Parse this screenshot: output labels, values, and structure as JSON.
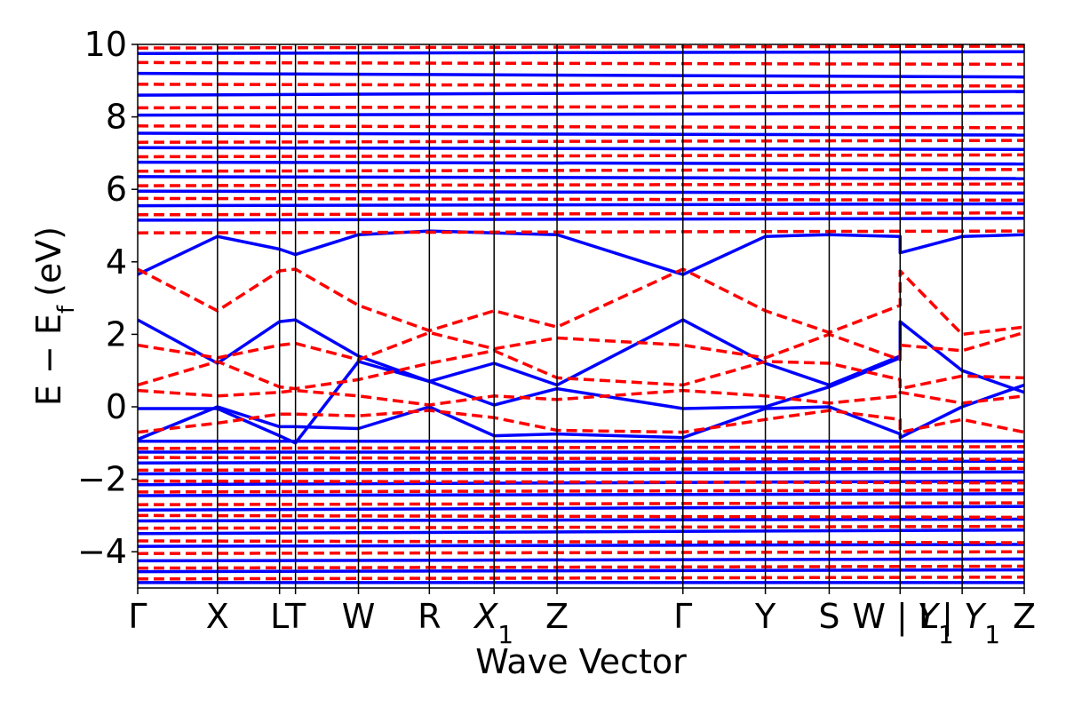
{
  "chart_data": {
    "type": "line",
    "title": "",
    "xlabel": "Wave Vector",
    "ylabel": "E − E_f (eV)",
    "ylabel_parts": {
      "main": "E − E",
      "sub": "f",
      "unit": "(eV)"
    },
    "ylim": [
      -5,
      10
    ],
    "yticks": [
      -4,
      -2,
      0,
      2,
      4,
      6,
      8,
      10
    ],
    "ytick_labels": [
      "−4",
      "−2",
      "0",
      "2",
      "4",
      "6",
      "8",
      "10"
    ],
    "grid": false,
    "legend": "none",
    "kpath": [
      {
        "label": "Γ",
        "sub": "",
        "k": 0.0
      },
      {
        "label": "X",
        "sub": "",
        "k": 0.9
      },
      {
        "label": "L",
        "sub": "",
        "k": 1.6
      },
      {
        "label": "T",
        "sub": "",
        "k": 1.78
      },
      {
        "label": "W",
        "sub": "",
        "k": 2.49
      },
      {
        "label": "R",
        "sub": "",
        "k": 3.29
      },
      {
        "label": "X",
        "sub": "1",
        "k": 4.02
      },
      {
        "label": "Z",
        "sub": "",
        "k": 4.73
      },
      {
        "label": "Γ",
        "sub": "",
        "k": 6.15
      },
      {
        "label": "Y",
        "sub": "",
        "k": 7.08
      },
      {
        "label": "S",
        "sub": "",
        "k": 7.8
      },
      {
        "label": "W | L",
        "sub": "",
        "k": 8.6
      },
      {
        "label": "Y",
        "sub": "1",
        "k": 9.3
      },
      {
        "label": "| Y",
        "sub": "1",
        "k": 9.3
      },
      {
        "label": "Z",
        "sub": "",
        "k": 10.0
      }
    ],
    "vlines_k": [
      0.9,
      1.6,
      1.78,
      2.49,
      3.29,
      4.02,
      4.73,
      6.15,
      7.08,
      7.8,
      8.6,
      9.3
    ],
    "xlim": [
      0,
      10
    ],
    "series": [
      {
        "style": "solid",
        "color": "#0000ff",
        "bands": [
          {
            "k": [
              0,
              0.9,
              1.6,
              1.78,
              2.49,
              3.29,
              4.02,
              4.73,
              6.15,
              7.08,
              7.8,
              8.6,
              8.6,
              9.3,
              10.0
            ],
            "e": [
              3.65,
              4.7,
              4.35,
              4.2,
              4.75,
              4.85,
              4.8,
              4.75,
              3.65,
              4.7,
              4.75,
              4.7,
              4.25,
              4.7,
              4.75
            ]
          },
          {
            "k": [
              0,
              0.9,
              1.6,
              1.78,
              2.49,
              3.29,
              4.02,
              4.73,
              6.15,
              7.08,
              7.8,
              8.6,
              8.6,
              9.3,
              10.0
            ],
            "e": [
              2.4,
              1.2,
              2.35,
              2.4,
              1.4,
              0.7,
              1.2,
              0.6,
              2.4,
              1.2,
              0.6,
              1.4,
              2.35,
              1.0,
              0.4
            ]
          },
          {
            "k": [
              0,
              0.9,
              1.6,
              1.78,
              2.49,
              3.29,
              4.02,
              4.73,
              6.15,
              7.08,
              7.8,
              8.6
            ],
            "e": [
              -0.05,
              -0.05,
              -0.8,
              -1.0,
              1.25,
              0.7,
              0.05,
              0.5,
              -0.05,
              0.0,
              0.55,
              1.35
            ]
          },
          {
            "k": [
              0,
              0.9,
              1.6,
              1.78,
              2.49,
              3.29,
              4.02,
              4.73,
              6.15,
              7.08,
              7.8,
              8.6,
              8.6,
              9.3,
              10.0
            ],
            "e": [
              -0.9,
              0.0,
              -0.55,
              -0.55,
              -0.6,
              0.0,
              -0.8,
              -0.75,
              -0.85,
              -0.05,
              0.0,
              -0.75,
              -0.85,
              0.0,
              0.6
            ]
          },
          {
            "k": [
              0,
              10
            ],
            "e": [
              -0.95,
              -0.95
            ]
          },
          {
            "k": [
              0,
              10
            ],
            "e": [
              -1.25,
              -1.25
            ]
          },
          {
            "k": [
              0,
              10
            ],
            "e": [
              -1.55,
              -1.5
            ]
          },
          {
            "k": [
              0,
              10
            ],
            "e": [
              -1.85,
              -1.8
            ]
          },
          {
            "k": [
              0,
              10
            ],
            "e": [
              -2.15,
              -2.05
            ]
          },
          {
            "k": [
              0,
              10
            ],
            "e": [
              -2.45,
              -2.4
            ]
          },
          {
            "k": [
              0,
              10
            ],
            "e": [
              -2.85,
              -2.75
            ]
          },
          {
            "k": [
              0,
              10
            ],
            "e": [
              -3.15,
              -3.1
            ]
          },
          {
            "k": [
              0,
              10
            ],
            "e": [
              -3.5,
              -3.4
            ]
          },
          {
            "k": [
              0,
              10
            ],
            "e": [
              -3.85,
              -3.8
            ]
          },
          {
            "k": [
              0,
              10
            ],
            "e": [
              -4.25,
              -4.2
            ]
          },
          {
            "k": [
              0,
              10
            ],
            "e": [
              -4.55,
              -4.5
            ]
          },
          {
            "k": [
              0,
              10
            ],
            "e": [
              -4.85,
              -4.85
            ]
          },
          {
            "k": [
              0,
              10
            ],
            "e": [
              5.15,
              5.2
            ]
          },
          {
            "k": [
              0,
              10
            ],
            "e": [
              5.55,
              5.6
            ]
          },
          {
            "k": [
              0,
              10
            ],
            "e": [
              5.95,
              5.9
            ]
          },
          {
            "k": [
              0,
              10
            ],
            "e": [
              6.35,
              6.3
            ]
          },
          {
            "k": [
              0,
              10
            ],
            "e": [
              6.75,
              6.7
            ]
          },
          {
            "k": [
              0,
              10
            ],
            "e": [
              7.15,
              7.1
            ]
          },
          {
            "k": [
              0,
              10
            ],
            "e": [
              7.55,
              7.5
            ]
          },
          {
            "k": [
              0,
              10
            ],
            "e": [
              8.05,
              8.1
            ]
          },
          {
            "k": [
              0,
              10
            ],
            "e": [
              8.6,
              8.7
            ]
          },
          {
            "k": [
              0,
              10
            ],
            "e": [
              9.2,
              9.1
            ]
          },
          {
            "k": [
              0,
              10
            ],
            "e": [
              9.75,
              9.8
            ]
          }
        ]
      },
      {
        "style": "dashed",
        "color": "#ff0000",
        "bands": [
          {
            "k": [
              0,
              0.9,
              1.6,
              1.78,
              2.49,
              3.29,
              4.02,
              4.73,
              6.15,
              7.08,
              7.8,
              8.6,
              8.6,
              9.3,
              10.0
            ],
            "e": [
              3.8,
              2.65,
              3.75,
              3.8,
              2.8,
              2.1,
              2.65,
              2.2,
              3.8,
              2.65,
              2.05,
              2.8,
              3.75,
              2.0,
              2.2
            ]
          },
          {
            "k": [
              0,
              0.9,
              1.6,
              1.78,
              2.49,
              3.29,
              4.02,
              4.73,
              6.15,
              7.08,
              7.8,
              8.6,
              8.6,
              9.3,
              10.0
            ],
            "e": [
              1.7,
              1.35,
              1.7,
              1.75,
              1.3,
              2.05,
              1.6,
              1.9,
              1.7,
              1.35,
              2.0,
              1.3,
              1.7,
              1.55,
              2.05
            ]
          },
          {
            "k": [
              0,
              0.9,
              1.6,
              1.78,
              2.49,
              3.29,
              4.02,
              4.73,
              6.15,
              7.08,
              7.8,
              8.6,
              8.6,
              9.3,
              10.0
            ],
            "e": [
              0.6,
              1.25,
              0.55,
              0.5,
              0.75,
              1.2,
              1.55,
              0.8,
              0.6,
              1.25,
              1.2,
              0.75,
              0.5,
              0.85,
              0.8
            ]
          },
          {
            "k": [
              0,
              0.9,
              1.6,
              1.78,
              2.49,
              3.29,
              4.02,
              4.73,
              6.15,
              7.08,
              7.8,
              8.6,
              8.6,
              9.3,
              10.0
            ],
            "e": [
              0.45,
              0.3,
              0.4,
              0.45,
              0.3,
              0.05,
              0.3,
              0.2,
              0.45,
              0.3,
              0.1,
              0.3,
              0.4,
              0.1,
              0.3
            ]
          },
          {
            "k": [
              0,
              0.9,
              1.6,
              1.78,
              2.49,
              3.29,
              4.02,
              4.73,
              6.15,
              7.08,
              7.8,
              8.6,
              8.6,
              9.3,
              10.0
            ],
            "e": [
              -0.7,
              -0.45,
              -0.2,
              -0.2,
              -0.25,
              -0.1,
              -0.3,
              -0.65,
              -0.7,
              -0.35,
              -0.1,
              -0.35,
              -0.7,
              -0.35,
              -0.7
            ]
          },
          {
            "k": [
              0,
              10
            ],
            "e": [
              -1.15,
              -1.1
            ]
          },
          {
            "k": [
              0,
              10
            ],
            "e": [
              -1.4,
              -1.45
            ]
          },
          {
            "k": [
              0,
              10
            ],
            "e": [
              -1.75,
              -1.7
            ]
          },
          {
            "k": [
              0,
              10
            ],
            "e": [
              -2.05,
              -2.1
            ]
          },
          {
            "k": [
              0,
              10
            ],
            "e": [
              -2.35,
              -2.3
            ]
          },
          {
            "k": [
              0,
              10
            ],
            "e": [
              -2.7,
              -2.65
            ]
          },
          {
            "k": [
              0,
              10
            ],
            "e": [
              -3.0,
              -3.05
            ]
          },
          {
            "k": [
              0,
              10
            ],
            "e": [
              -3.35,
              -3.3
            ]
          },
          {
            "k": [
              0,
              10
            ],
            "e": [
              -3.7,
              -3.75
            ]
          },
          {
            "k": [
              0,
              10
            ],
            "e": [
              -4.05,
              -4.0
            ]
          },
          {
            "k": [
              0,
              10
            ],
            "e": [
              -4.45,
              -4.4
            ]
          },
          {
            "k": [
              0,
              10
            ],
            "e": [
              -4.75,
              -4.7
            ]
          },
          {
            "k": [
              0,
              10
            ],
            "e": [
              4.8,
              4.85
            ]
          },
          {
            "k": [
              0,
              10
            ],
            "e": [
              5.3,
              5.35
            ]
          },
          {
            "k": [
              0,
              10
            ],
            "e": [
              5.75,
              5.7
            ]
          },
          {
            "k": [
              0,
              10
            ],
            "e": [
              6.1,
              6.15
            ]
          },
          {
            "k": [
              0,
              10
            ],
            "e": [
              6.5,
              6.55
            ]
          },
          {
            "k": [
              0,
              10
            ],
            "e": [
              6.9,
              6.95
            ]
          },
          {
            "k": [
              0,
              10
            ],
            "e": [
              7.3,
              7.35
            ]
          },
          {
            "k": [
              0,
              10
            ],
            "e": [
              7.75,
              7.7
            ]
          },
          {
            "k": [
              0,
              10
            ],
            "e": [
              8.25,
              8.3
            ]
          },
          {
            "k": [
              0,
              10
            ],
            "e": [
              8.9,
              8.85
            ]
          },
          {
            "k": [
              0,
              10
            ],
            "e": [
              9.5,
              9.45
            ]
          },
          {
            "k": [
              0,
              10
            ],
            "e": [
              9.9,
              9.95
            ]
          }
        ]
      }
    ]
  }
}
